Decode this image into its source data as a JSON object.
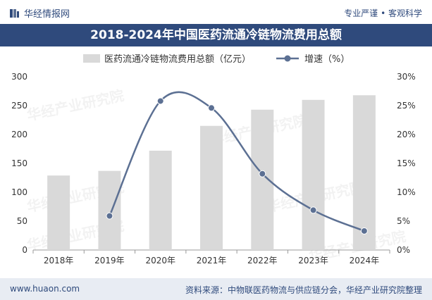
{
  "header": {
    "brand": "华经情报网",
    "slogan": "专业严谨 • 客观科学"
  },
  "chart_data": {
    "type": "bar+line",
    "title": "2018-2024年中国医药流通冷链物流费用总额",
    "categories": [
      "2018年",
      "2019年",
      "2020年",
      "2021年",
      "2022年",
      "2023年",
      "2024年"
    ],
    "series": [
      {
        "name": "医药流通冷链物流费用总额（亿元）",
        "type": "bar",
        "axis": "left",
        "values": [
          129,
          137,
          172,
          215,
          243,
          260,
          268
        ]
      },
      {
        "name": "增速（%）",
        "type": "line",
        "axis": "right",
        "values": [
          null,
          5.9,
          25.8,
          24.6,
          13.2,
          6.9,
          3.3
        ]
      }
    ],
    "y_left": {
      "min": 0,
      "max": 300,
      "ticks": [
        0,
        50,
        100,
        150,
        200,
        250,
        300
      ]
    },
    "y_right": {
      "min": 0,
      "max": 30,
      "ticks": [
        "0%",
        "5%",
        "10%",
        "15%",
        "20%",
        "25%",
        "30%"
      ]
    },
    "legend_position": "top-center",
    "grid": false,
    "colors": {
      "bar": "#d9d9d9",
      "line": "#5c7093"
    }
  },
  "watermark": "华经产业研究院",
  "footer": {
    "site": "www.huaon.com",
    "source": "资料来源：中物联医药物流与供应链分会，华经产业研究院整理"
  }
}
